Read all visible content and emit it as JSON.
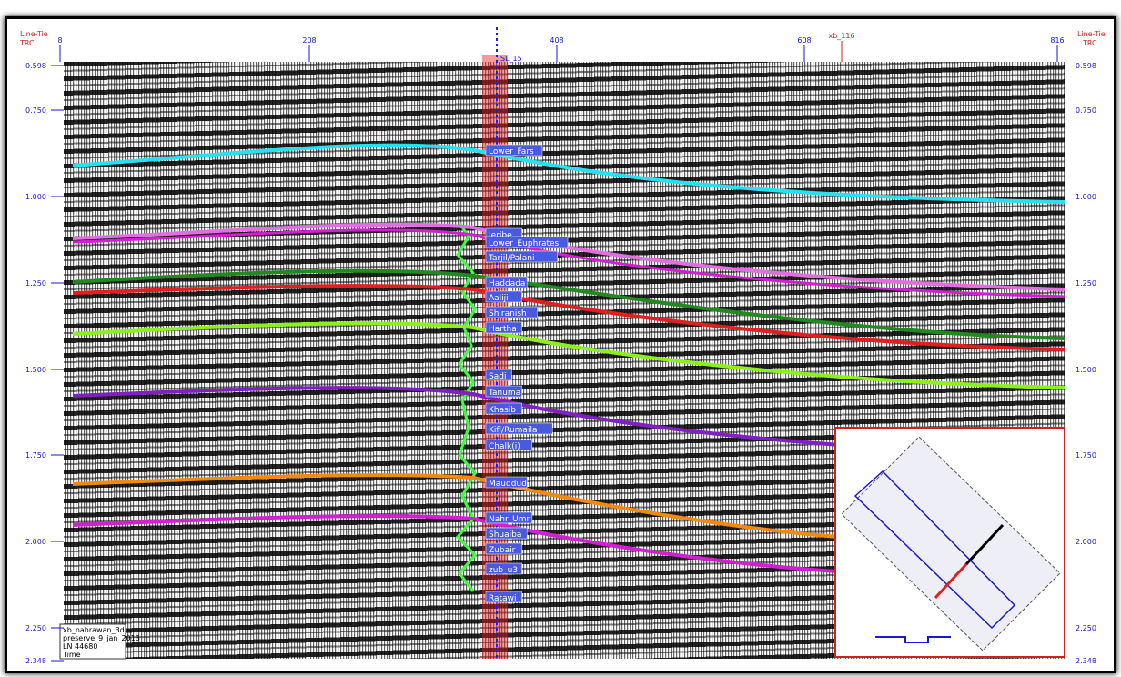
{
  "frame": {
    "left_label": "Line-Tie",
    "left_unit": "TRC",
    "right_label": "Line-Tie",
    "right_unit": "TRC",
    "trace_ticks": [
      "8",
      "208",
      "408",
      "608",
      "816"
    ],
    "tie_label": "xb_116",
    "well": "SL_15",
    "time_ticks": [
      "0.598",
      "0.750",
      "1.000",
      "1.250",
      "1.500",
      "1.750",
      "2.000",
      "2.250",
      "2.348"
    ]
  },
  "horizons": [
    "Lower_Fars",
    "Jeribe",
    "Lower_Euphrates",
    "Tarjil/Palani",
    "Haddada",
    "Aaliji",
    "Shiranish",
    "Hartha",
    "Sadi",
    "Tanuma",
    "Khasib",
    "Kifl/Rumaila",
    "Chalk(i)",
    "Mauddud",
    "Nahr_Umr",
    "Shuaiba",
    "Zubair",
    "zub_u3",
    "Ratawi"
  ],
  "info_box": [
    "xb_nahrawan_3d",
    "preserve_9_jan_2013",
    "LN 44680",
    "Time"
  ]
}
